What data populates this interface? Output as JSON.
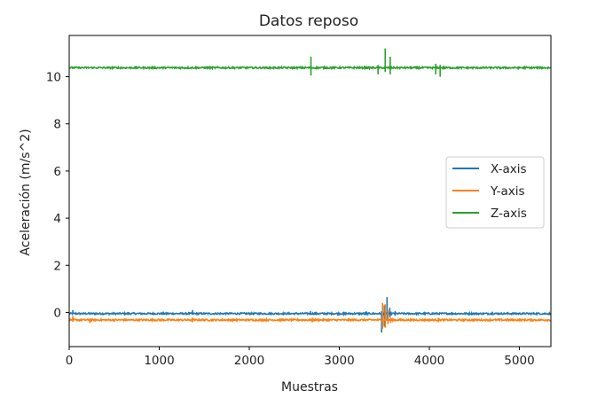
{
  "chart_data": {
    "type": "line",
    "title": "Datos reposo",
    "xlabel": "Muestras",
    "ylabel": "Aceleración (m/s^2)",
    "xlim": [
      0,
      5350
    ],
    "ylim": [
      -1.45,
      11.75
    ],
    "xticks": [
      0,
      1000,
      2000,
      3000,
      4000,
      5000
    ],
    "yticks": [
      0,
      2,
      4,
      6,
      8,
      10
    ],
    "grid": false,
    "legend_position": "center-right",
    "series": [
      {
        "name": "X-axis",
        "color": "#1f77b4",
        "baseline": -0.05,
        "noise": 0.035,
        "spikes": [
          [
            40,
            -0.05,
            0.1
          ],
          [
            1370,
            -0.1,
            0.1
          ],
          [
            2680,
            -0.1,
            0.06
          ],
          [
            3050,
            -0.15,
            0.03
          ],
          [
            3300,
            -0.12,
            0.05
          ],
          [
            3470,
            -0.85,
            0.05
          ],
          [
            3500,
            -0.6,
            0.3
          ],
          [
            3530,
            -0.3,
            0.65
          ],
          [
            3560,
            -0.2,
            0.2
          ],
          [
            3620,
            -0.15,
            0.06
          ],
          [
            4700,
            -0.12,
            0.03
          ]
        ]
      },
      {
        "name": "Y-axis",
        "color": "#ff7f0e",
        "baseline": -0.32,
        "noise": 0.035,
        "spikes": [
          [
            40,
            -0.4,
            -0.15
          ],
          [
            230,
            -0.45,
            -0.25
          ],
          [
            1370,
            -0.42,
            -0.22
          ],
          [
            2700,
            -0.42,
            -0.22
          ],
          [
            3480,
            -0.7,
            0.4
          ],
          [
            3510,
            -0.65,
            0.35
          ],
          [
            3540,
            -0.5,
            0.1
          ],
          [
            3570,
            -0.45,
            -0.2
          ],
          [
            4100,
            -0.42,
            -0.22
          ]
        ]
      },
      {
        "name": "Z-axis",
        "color": "#2ca02c",
        "baseline": 10.38,
        "noise": 0.035,
        "spikes": [
          [
            2685,
            10.05,
            10.85
          ],
          [
            3430,
            10.1,
            10.5
          ],
          [
            3510,
            10.2,
            11.2
          ],
          [
            3565,
            10.1,
            10.85
          ],
          [
            4070,
            10.1,
            10.55
          ],
          [
            4120,
            10.0,
            10.5
          ]
        ]
      }
    ]
  }
}
